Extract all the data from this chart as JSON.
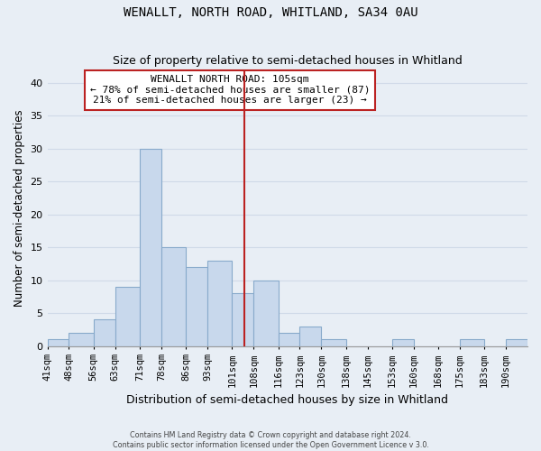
{
  "title": "WENALLT, NORTH ROAD, WHITLAND, SA34 0AU",
  "subtitle": "Size of property relative to semi-detached houses in Whitland",
  "xlabel": "Distribution of semi-detached houses by size in Whitland",
  "ylabel": "Number of semi-detached properties",
  "footer_line1": "Contains HM Land Registry data © Crown copyright and database right 2024.",
  "footer_line2": "Contains public sector information licensed under the Open Government Licence v 3.0.",
  "bin_labels": [
    "41sqm",
    "48sqm",
    "56sqm",
    "63sqm",
    "71sqm",
    "78sqm",
    "86sqm",
    "93sqm",
    "101sqm",
    "108sqm",
    "116sqm",
    "123sqm",
    "130sqm",
    "138sqm",
    "145sqm",
    "153sqm",
    "160sqm",
    "168sqm",
    "175sqm",
    "183sqm",
    "190sqm"
  ],
  "bin_edges": [
    41,
    48,
    56,
    63,
    71,
    78,
    86,
    93,
    101,
    108,
    116,
    123,
    130,
    138,
    145,
    153,
    160,
    168,
    175,
    183,
    190
  ],
  "bar_heights": [
    1,
    2,
    4,
    9,
    30,
    15,
    12,
    13,
    8,
    10,
    2,
    3,
    1,
    0,
    0,
    1,
    0,
    0,
    1,
    0,
    1
  ],
  "bar_color": "#c8d8ec",
  "bar_edge_color": "#88aacb",
  "property_line_x": 105,
  "property_line_color": "#bb2222",
  "annotation_line1": "WENALLT NORTH ROAD: 105sqm",
  "annotation_line2": "← 78% of semi-detached houses are smaller (87)",
  "annotation_line3": "21% of semi-detached houses are larger (23) →",
  "annotation_box_edge_color": "#bb2222",
  "ylim": [
    0,
    42
  ],
  "yticks": [
    0,
    5,
    10,
    15,
    20,
    25,
    30,
    35,
    40
  ],
  "grid_color": "#d0dae8",
  "background_color": "#e8eef5",
  "plot_bg_color": "#e8eef5"
}
